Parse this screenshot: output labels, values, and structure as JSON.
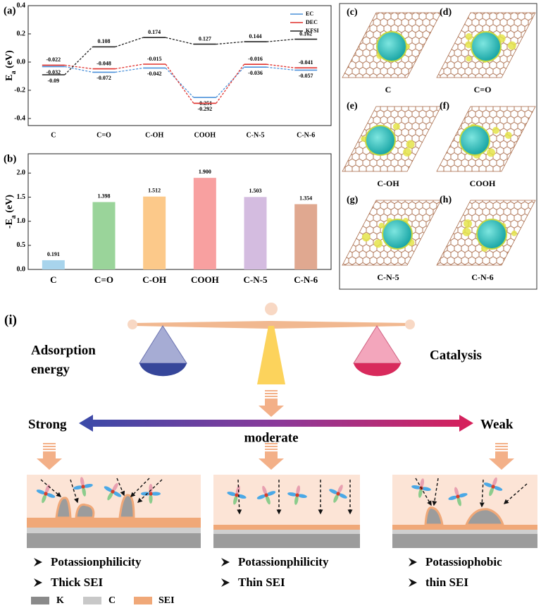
{
  "chart_data": [
    {
      "type": "level",
      "panel": "(a)",
      "ylabel": [
        "E",
        "a",
        " (eV)"
      ],
      "categories": [
        "C",
        "C=O",
        "C-OH",
        "COOH",
        "C-N-5",
        "C-N-6"
      ],
      "series": [
        {
          "name": "EC",
          "color": "#4a90d9",
          "values": [
            -0.032,
            -0.072,
            -0.042,
            -0.251,
            -0.036,
            -0.057
          ]
        },
        {
          "name": "DEC",
          "color": "#e0302c",
          "values": [
            -0.022,
            -0.048,
            -0.015,
            -0.292,
            -0.016,
            -0.041
          ]
        },
        {
          "name": "KFSI",
          "color": "#222222",
          "values": [
            -0.09,
            0.108,
            0.174,
            0.127,
            0.144,
            0.162
          ]
        }
      ],
      "ylim": [
        -0.45,
        0.4
      ],
      "yticks": [
        -0.4,
        -0.2,
        {
          "value": 0,
          "label": "0.0"
        },
        0.2,
        0.4
      ],
      "legend": "upper right"
    },
    {
      "type": "bar",
      "panel": "(b)",
      "ylabel": [
        "-E",
        "a",
        " (eV)"
      ],
      "categories": [
        "C",
        "C=O",
        "C-OH",
        "COOH",
        "C-N-5",
        "C-N-6"
      ],
      "values": [
        0.191,
        1.398,
        1.512,
        1.9,
        1.503,
        1.354
      ],
      "value_labels": [
        "0.191",
        "1.398",
        "1.512",
        "1.900",
        "1.503",
        "1.354"
      ],
      "colors": [
        "#a8d4ec",
        "#9ad49a",
        "#fcc98a",
        "#f8a0a0",
        "#d4bce0",
        "#e0a890"
      ],
      "ylim": [
        0,
        2.4
      ],
      "yticks": [
        {
          "value": 0,
          "label": "0.0"
        },
        {
          "value": 0.5,
          "label": "0.5"
        },
        {
          "value": 1,
          "label": "1.0"
        },
        {
          "value": 1.5,
          "label": "1.5"
        },
        {
          "value": 2,
          "label": "2.0"
        }
      ]
    }
  ],
  "structures": [
    {
      "tag": "(c)",
      "label": "C"
    },
    {
      "tag": "(d)",
      "label": "C=O"
    },
    {
      "tag": "(e)",
      "label": "C-OH"
    },
    {
      "tag": "(f)",
      "label": "COOH"
    },
    {
      "tag": "(g)",
      "label": "C-N-5"
    },
    {
      "tag": "(h)",
      "label": "C-N-6"
    }
  ],
  "scheme": {
    "tag": "(i)",
    "left": [
      "Adsorption",
      "energy"
    ],
    "right": "Catalysis",
    "scale": [
      "Strong",
      "moderate",
      "Weak"
    ],
    "cases": [
      [
        "Potassionphilicity",
        "Thick SEI"
      ],
      [
        "Potassionphilicity",
        "Thin SEI"
      ],
      [
        "Potassiophobic",
        "thin SEI"
      ]
    ],
    "legend": [
      "K",
      "C",
      "SEI"
    ]
  }
}
